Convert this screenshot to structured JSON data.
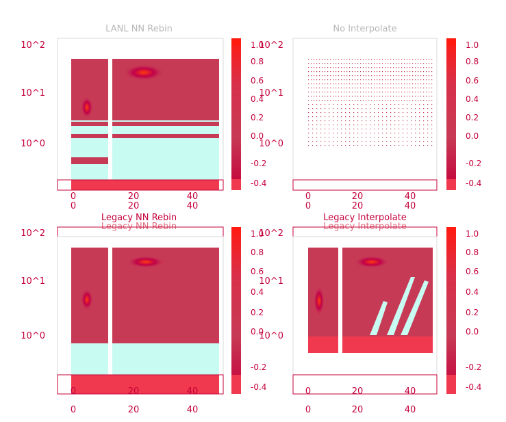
{
  "chart_data": [
    {
      "type": "heatmap",
      "title": "LANL NN Rebin",
      "x_ticks": [
        "0",
        "20",
        "40"
      ],
      "y_ticks": [
        "10^0",
        "10^1",
        "10^2"
      ],
      "y_scale": "log",
      "xlim": [
        -3,
        50
      ],
      "colorbar_ticks": [
        "-0.4",
        "-0.2",
        "0.0",
        "0.2",
        "0.4",
        "0.6",
        "0.8",
        "1.0"
      ],
      "colorbar_range": [
        -0.5,
        1.05
      ]
    },
    {
      "type": "heatmap",
      "title": "No Interpolate",
      "x_ticks": [
        "0",
        "20",
        "40"
      ],
      "y_ticks": [
        "10^0",
        "10^1",
        "10^2"
      ],
      "y_scale": "log",
      "xlim": [
        -3,
        50
      ],
      "colorbar_ticks": [
        "-0.4",
        "-0.2",
        "0.0",
        "0.2",
        "0.4",
        "0.6",
        "0.8",
        "1.0"
      ],
      "colorbar_range": [
        -0.5,
        1.05
      ]
    },
    {
      "type": "heatmap",
      "title": "Legacy NN Rebin",
      "x_ticks": [
        "0",
        "20",
        "40"
      ],
      "y_ticks": [
        "10^0",
        "10^1",
        "10^2"
      ],
      "y_scale": "log",
      "xlim": [
        -3,
        50
      ],
      "colorbar_ticks": [
        "-0.4",
        "-0.2",
        "0.0",
        "0.2",
        "0.4",
        "0.6",
        "0.8",
        "1.0"
      ],
      "colorbar_range": [
        -0.5,
        1.05
      ]
    },
    {
      "type": "heatmap",
      "title": "Legacy Interpolate",
      "x_ticks": [
        "0",
        "20",
        "40"
      ],
      "y_ticks": [
        "10^0",
        "10^1",
        "10^2"
      ],
      "y_scale": "log",
      "xlim": [
        -3,
        50
      ],
      "colorbar_ticks": [
        "-0.4",
        "-0.2",
        "0.0",
        "0.2",
        "0.4",
        "0.6",
        "0.8",
        "1.0"
      ],
      "colorbar_range": [
        -0.5,
        1.05
      ]
    }
  ],
  "colors": {
    "accent": "#e8254a",
    "dark": "#c4003a",
    "mid": "#c73a55",
    "hot": "#ff2a1a",
    "cool": "#c8fbf2",
    "title_light": "#b8b8b8"
  }
}
